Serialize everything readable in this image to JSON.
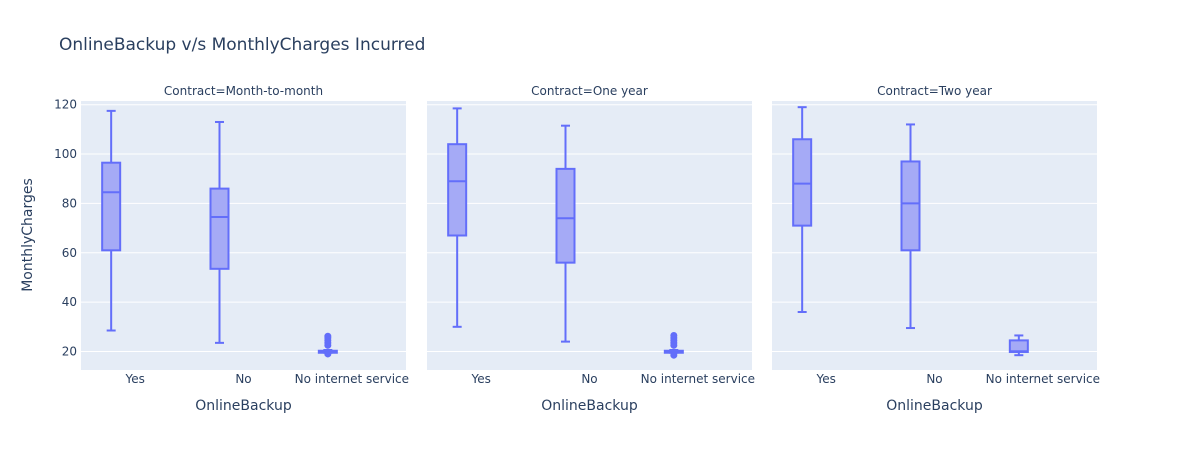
{
  "chart_data": {
    "type": "box",
    "title": "OnlineBackup v/s MonthlyCharges Incurred",
    "xlabel": "OnlineBackup",
    "ylabel": "MonthlyCharges",
    "ylim": [
      12.5,
      121.5
    ],
    "yticks": [
      20,
      40,
      60,
      80,
      100,
      120
    ],
    "categories": [
      "Yes",
      "No",
      "No internet service"
    ],
    "colors": {
      "box_fill": "#a5aaf6",
      "box_line": "#636efa",
      "plot_bg": "#e5ecf6",
      "grid": "#ffffff",
      "text": "#2a3f5f"
    },
    "facets": [
      {
        "title": "Contract=Month-to-month",
        "boxes": [
          {
            "category": "Yes",
            "min": 28.5,
            "q1": 61,
            "median": 84.5,
            "q3": 96.5,
            "max": 117.5,
            "outliers": []
          },
          {
            "category": "No",
            "min": 23.5,
            "q1": 53.5,
            "median": 74.5,
            "q3": 86,
            "max": 113,
            "outliers": []
          },
          {
            "category": "No internet service",
            "min": 19.5,
            "q1": 19.8,
            "median": 20.05,
            "q3": 20.3,
            "max": 20.6,
            "outliers": [
              22.5,
              23.5,
              24.5,
              25.5,
              26.2,
              19
            ]
          }
        ]
      },
      {
        "title": "Contract=One year",
        "boxes": [
          {
            "category": "Yes",
            "min": 30,
            "q1": 67,
            "median": 89,
            "q3": 104,
            "max": 118.5,
            "outliers": []
          },
          {
            "category": "No",
            "min": 24,
            "q1": 56,
            "median": 74,
            "q3": 94,
            "max": 111.5,
            "outliers": []
          },
          {
            "category": "No internet service",
            "min": 19.5,
            "q1": 19.8,
            "median": 20.05,
            "q3": 20.3,
            "max": 20.6,
            "outliers": [
              22.5,
              23.5,
              24.5,
              25.5,
              26.5,
              18.5
            ]
          }
        ]
      },
      {
        "title": "Contract=Two year",
        "boxes": [
          {
            "category": "Yes",
            "min": 36,
            "q1": 71,
            "median": 88,
            "q3": 106,
            "max": 119,
            "outliers": []
          },
          {
            "category": "No",
            "min": 29.5,
            "q1": 61,
            "median": 80,
            "q3": 97,
            "max": 112,
            "outliers": []
          },
          {
            "category": "No internet service",
            "min": 18.5,
            "q1": 19.8,
            "median": 20.1,
            "q3": 24.5,
            "max": 26.5,
            "outliers": []
          }
        ]
      }
    ]
  }
}
